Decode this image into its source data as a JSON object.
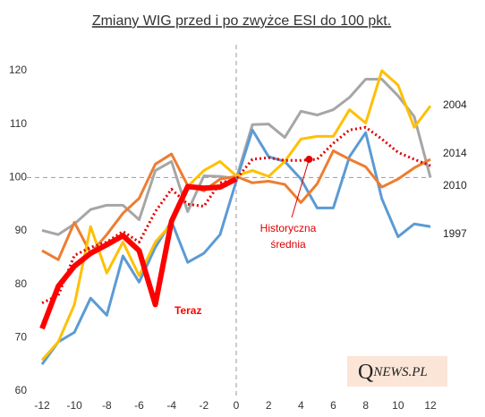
{
  "chart_data": {
    "type": "line",
    "title": "Zmiany WIG przed i po zwyżce ESI do 100 pkt.",
    "x": [
      -12,
      -11,
      -10,
      -9,
      -8,
      -7,
      -6,
      -5,
      -4,
      -3,
      -2,
      -1,
      0,
      1,
      2,
      3,
      4,
      5,
      6,
      7,
      8,
      9,
      10,
      11,
      12
    ],
    "xlim": [
      -12,
      12
    ],
    "xticks": [
      -12,
      -10,
      -8,
      -6,
      -4,
      -2,
      0,
      2,
      4,
      6,
      8,
      10,
      12
    ],
    "ylim": [
      60,
      120
    ],
    "yticks": [
      60,
      70,
      80,
      90,
      100,
      110,
      120
    ],
    "grid": false,
    "reference_x": 0,
    "reference_y": 100,
    "series": [
      {
        "name": "2010",
        "color": "#a6a6a6",
        "width": 3,
        "dash": false,
        "values": [
          90.1,
          89.3,
          91.3,
          94,
          94.8,
          94.8,
          92.1,
          101.3,
          103,
          93.6,
          100.3,
          100.2,
          99.8,
          109.9,
          110,
          107.5,
          112.4,
          111.7,
          112.7,
          115,
          118.4,
          118.4,
          115.3,
          111.4,
          100
        ]
      },
      {
        "name": "1997",
        "color": "#5b9bd5",
        "width": 3,
        "dash": false,
        "values": [
          65,
          69.2,
          71,
          77.4,
          74.2,
          85.3,
          80.4,
          86.9,
          91.8,
          84.1,
          85.8,
          89.3,
          99.3,
          108.9,
          103.9,
          103,
          99.7,
          94.3,
          94.3,
          103.9,
          108.4,
          96,
          88.9,
          91.3,
          90.8
        ]
      },
      {
        "name": "2014",
        "color": "#ed7d31",
        "width": 3,
        "dash": false,
        "values": [
          86.3,
          84.6,
          91.6,
          85.8,
          89.3,
          93.3,
          96.1,
          102.5,
          104.4,
          98.5,
          97.5,
          99.7,
          100.2,
          99,
          99.3,
          98.7,
          95.3,
          98.8,
          105,
          103.4,
          102,
          98.2,
          99.7,
          101.8,
          103.4
        ]
      },
      {
        "name": "2004",
        "color": "#ffc000",
        "width": 3,
        "dash": false,
        "values": [
          65.8,
          69.2,
          76.2,
          90.8,
          82.1,
          87.9,
          81.6,
          87.9,
          91.3,
          98.3,
          101.3,
          103,
          100.3,
          101.3,
          100.2,
          103,
          107.2,
          107.7,
          107.7,
          112.7,
          110.2,
          120,
          117.3,
          109.4,
          113.4
        ]
      },
      {
        "color": "#e00000",
        "width": 3,
        "dash": true,
        "values": [
          76.5,
          77.9,
          85.4,
          86.9,
          87.9,
          89.9,
          87.9,
          93.6,
          97.8,
          95,
          94.6,
          99,
          99.7,
          103.4,
          103.7,
          103.2,
          103.2,
          103.4,
          106.4,
          108.9,
          109.4,
          107.2,
          104.7,
          103.4,
          102.2
        ]
      },
      {
        "name": "Teraz",
        "color": "#ff0000",
        "width": 6,
        "dash": false,
        "values": [
          71.7,
          79.6,
          83.4,
          85.8,
          87.4,
          89.1,
          86.3,
          76.2,
          91.8,
          98.3,
          98,
          98.2,
          99.7,
          null,
          null,
          null,
          null,
          null,
          null,
          null,
          null,
          null,
          null,
          null,
          null
        ]
      }
    ],
    "annotation": [
      "Historyczna",
      "średnia"
    ],
    "watermark_initial": "Q",
    "watermark_rest": "NEWS.PL"
  }
}
